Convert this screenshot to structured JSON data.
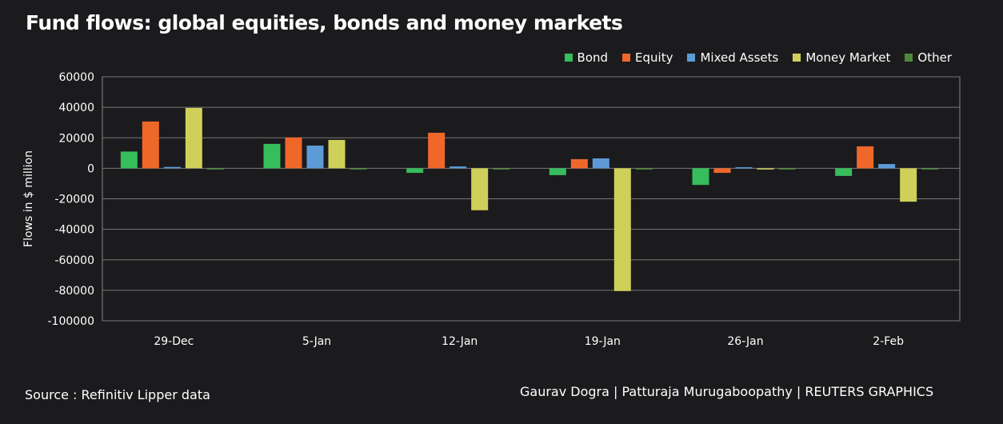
{
  "chart_data": {
    "type": "bar",
    "title": "Fund flows: global equities, bonds and money markets",
    "ylabel": "Flows in $ million",
    "xlabel": "",
    "ylim": [
      -100000,
      60000
    ],
    "yticks": [
      60000,
      40000,
      20000,
      0,
      -20000,
      -40000,
      -60000,
      -80000,
      -100000
    ],
    "grid": true,
    "legend": "top-right",
    "categories": [
      "29-Dec",
      "5-Jan",
      "12-Jan",
      "19-Jan",
      "26-Jan",
      "2-Feb"
    ],
    "series": [
      {
        "name": "Bond",
        "color": "#36bd5c",
        "values": [
          11000,
          16000,
          -3000,
          -4500,
          -10900,
          -5000
        ]
      },
      {
        "name": "Equity",
        "color": "#f0672a",
        "values": [
          30700,
          20200,
          23300,
          6000,
          -3000,
          14400
        ]
      },
      {
        "name": "Mixed Assets",
        "color": "#5d9bd8",
        "values": [
          900,
          14900,
          1200,
          6500,
          700,
          2800
        ]
      },
      {
        "name": "Money Market",
        "color": "#cfd05a",
        "values": [
          39600,
          18600,
          -27500,
          -80500,
          -300,
          -21900
        ]
      },
      {
        "name": "Other",
        "color": "#4e8a3a",
        "values": [
          -500,
          -500,
          -500,
          -300,
          -500,
          -200
        ]
      }
    ]
  },
  "source": "Source : Refinitiv Lipper data",
  "credit": "Gaurav Dogra | Patturaja Murugaboopathy | REUTERS GRAPHICS"
}
